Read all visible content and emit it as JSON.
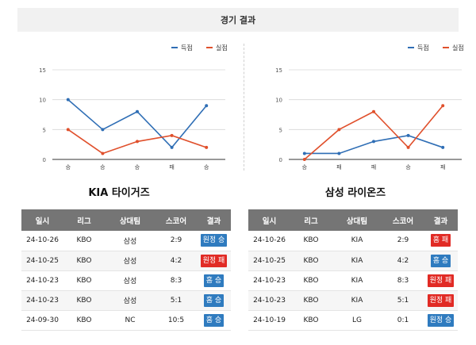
{
  "header": {
    "title": "경기 결과"
  },
  "charts": [
    {
      "legend": {
        "scored": "득점",
        "conceded": "실점"
      },
      "colors": {
        "scored": "#2f6eb5",
        "conceded": "#e0502c"
      },
      "y_ticks": [
        "0",
        "5",
        "10",
        "15"
      ],
      "x_labels": [
        "승",
        "승",
        "승",
        "패",
        "승"
      ],
      "scored": [
        10,
        5,
        8,
        2,
        9
      ],
      "conceded": [
        5,
        1,
        3,
        4,
        2
      ]
    },
    {
      "legend": {
        "scored": "득점",
        "conceded": "실점"
      },
      "colors": {
        "scored": "#2f6eb5",
        "conceded": "#e0502c"
      },
      "y_ticks": [
        "0",
        "5",
        "10",
        "15"
      ],
      "x_labels": [
        "승",
        "패",
        "패",
        "승",
        "패"
      ],
      "scored": [
        1,
        1,
        3,
        4,
        2
      ],
      "conceded": [
        0,
        5,
        8,
        2,
        9
      ]
    }
  ],
  "chart_data": [
    {
      "type": "line",
      "categories": [
        "승",
        "승",
        "승",
        "패",
        "승"
      ],
      "series": [
        {
          "name": "득점",
          "values": [
            10,
            5,
            8,
            2,
            9
          ]
        },
        {
          "name": "실점",
          "values": [
            5,
            1,
            3,
            4,
            2
          ]
        }
      ],
      "ylim": [
        0,
        15
      ],
      "legend": "top-right",
      "grid": true
    },
    {
      "type": "line",
      "categories": [
        "승",
        "패",
        "패",
        "승",
        "패"
      ],
      "series": [
        {
          "name": "득점",
          "values": [
            1,
            1,
            3,
            4,
            2
          ]
        },
        {
          "name": "실점",
          "values": [
            0,
            5,
            8,
            2,
            9
          ]
        }
      ],
      "ylim": [
        0,
        15
      ],
      "legend": "top-right",
      "grid": true
    }
  ],
  "teams": [
    {
      "name": "KIA 타이거즈",
      "headers": [
        "일시",
        "리그",
        "상대팀",
        "스코어",
        "결과"
      ],
      "rows": [
        {
          "date": "24-10-26",
          "league": "KBO",
          "opponent": "삼성",
          "score": "2:9",
          "result": "원정 승",
          "color": "blue"
        },
        {
          "date": "24-10-25",
          "league": "KBO",
          "opponent": "삼성",
          "score": "4:2",
          "result": "원정 패",
          "color": "red"
        },
        {
          "date": "24-10-23",
          "league": "KBO",
          "opponent": "삼성",
          "score": "8:3",
          "result": "홈 승",
          "color": "blue"
        },
        {
          "date": "24-10-23",
          "league": "KBO",
          "opponent": "삼성",
          "score": "5:1",
          "result": "홈 승",
          "color": "blue"
        },
        {
          "date": "24-09-30",
          "league": "KBO",
          "opponent": "NC",
          "score": "10:5",
          "result": "홈 승",
          "color": "blue"
        }
      ]
    },
    {
      "name": "삼성 라이온즈",
      "headers": [
        "일시",
        "리그",
        "상대팀",
        "스코어",
        "결과"
      ],
      "rows": [
        {
          "date": "24-10-26",
          "league": "KBO",
          "opponent": "KIA",
          "score": "2:9",
          "result": "홈 패",
          "color": "red"
        },
        {
          "date": "24-10-25",
          "league": "KBO",
          "opponent": "KIA",
          "score": "4:2",
          "result": "홈 승",
          "color": "blue"
        },
        {
          "date": "24-10-23",
          "league": "KBO",
          "opponent": "KIA",
          "score": "8:3",
          "result": "원정 패",
          "color": "red"
        },
        {
          "date": "24-10-23",
          "league": "KBO",
          "opponent": "KIA",
          "score": "5:1",
          "result": "원정 패",
          "color": "red"
        },
        {
          "date": "24-10-19",
          "league": "KBO",
          "opponent": "LG",
          "score": "0:1",
          "result": "원정 승",
          "color": "blue"
        }
      ]
    }
  ]
}
